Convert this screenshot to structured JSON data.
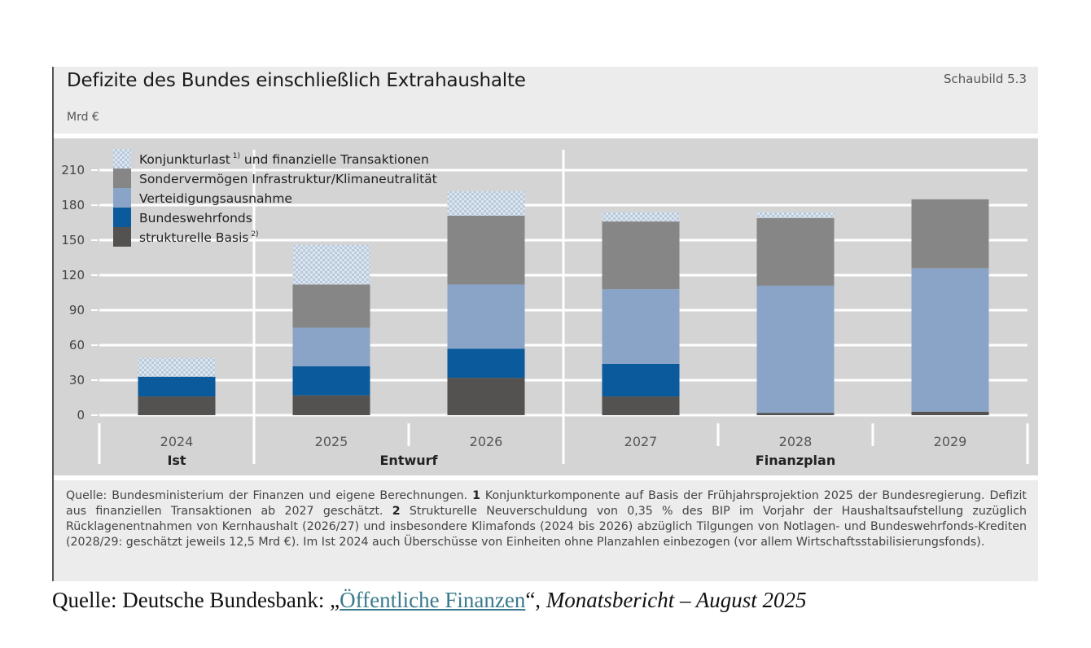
{
  "header": {
    "title": "Defizite des Bundes einschließlich Extrahaushalte",
    "figure_number": "Schaubild 5.3",
    "unit": "Mrd €"
  },
  "chart_data": {
    "type": "bar",
    "stacked": true,
    "title": "Defizite des Bundes einschließlich Extrahaushalte",
    "ylabel": "Mrd €",
    "xlabel": "",
    "ylim": [
      0,
      210
    ],
    "yticks": [
      0,
      30,
      60,
      90,
      120,
      150,
      180,
      210
    ],
    "grid": true,
    "legend_position": "top-left",
    "categories": [
      "2024",
      "2025",
      "2026",
      "2027",
      "2028",
      "2029"
    ],
    "category_groups": [
      {
        "label": "Ist",
        "categories": [
          "2024"
        ]
      },
      {
        "label": "Entwurf",
        "categories": [
          "2025",
          "2026"
        ]
      },
      {
        "label": "Finanzplan",
        "categories": [
          "2027",
          "2028",
          "2029"
        ]
      }
    ],
    "series": [
      {
        "name": "strukturelle Basis",
        "footnote": "2)",
        "color": "#545250",
        "pattern": "solid",
        "values": [
          16,
          17,
          32,
          16,
          2,
          3
        ]
      },
      {
        "name": "Bundeswehrfonds",
        "footnote": "",
        "color": "#0a5a9c",
        "pattern": "solid",
        "values": [
          17,
          25,
          25,
          28,
          0,
          0
        ]
      },
      {
        "name": "Verteidigungsausnahme",
        "footnote": "",
        "color": "#8aa4c8",
        "pattern": "solid",
        "values": [
          0,
          33,
          55,
          64,
          109,
          123
        ]
      },
      {
        "name": "Sondervermögen Infrastruktur / Klimaneutralität",
        "footnote": "",
        "color": "#878686",
        "pattern": "solid",
        "values": [
          0,
          37,
          59,
          58,
          58,
          59
        ]
      },
      {
        "name": "Konjunkturlast und finanzielle Transaktionen",
        "footnote": "1)",
        "color": "#c9d8e8",
        "pattern": "hatched",
        "values": [
          16,
          34,
          21,
          8,
          5,
          0
        ]
      }
    ],
    "legend_order": [
      4,
      3,
      2,
      1,
      0
    ]
  },
  "footnote": {
    "source_prefix": "Quelle: Bundesministerium der Finanzen und eigene Berechnungen.",
    "note1_num": "1",
    "note1_text": "Konjunkturkomponente auf Basis der Frühjahrsprojektion 2025 der Bundesregierung. Defizit aus finanziellen Transaktionen ab 2027 geschätzt.",
    "note2_num": "2",
    "note2_text": "Strukturelle Neuverschuldung von 0,35 % des BIP im Vorjahr der Haushaltsaufstellung zuzüglich Rücklagenentnahmen von Kernhaushalt (2026/27) und insbesondere Klimafonds (2024 bis 2026) abzüglich Tilgungen von Notlagen- und Bundeswehrfonds-Krediten (2028/29: geschätzt jeweils 12,5 Mrd €). Im Ist 2024 auch Überschüsse von Einheiten ohne Planzahlen einbezogen (vor allem Wirtschaftsstabilisierungsfonds)."
  },
  "source_line": {
    "prefix": "Quelle: Deutsche Bundesbank: „",
    "link_text": "Öffentliche Finanzen",
    "middle": "“, ",
    "publication": "Monatsbericht – August 2025"
  }
}
